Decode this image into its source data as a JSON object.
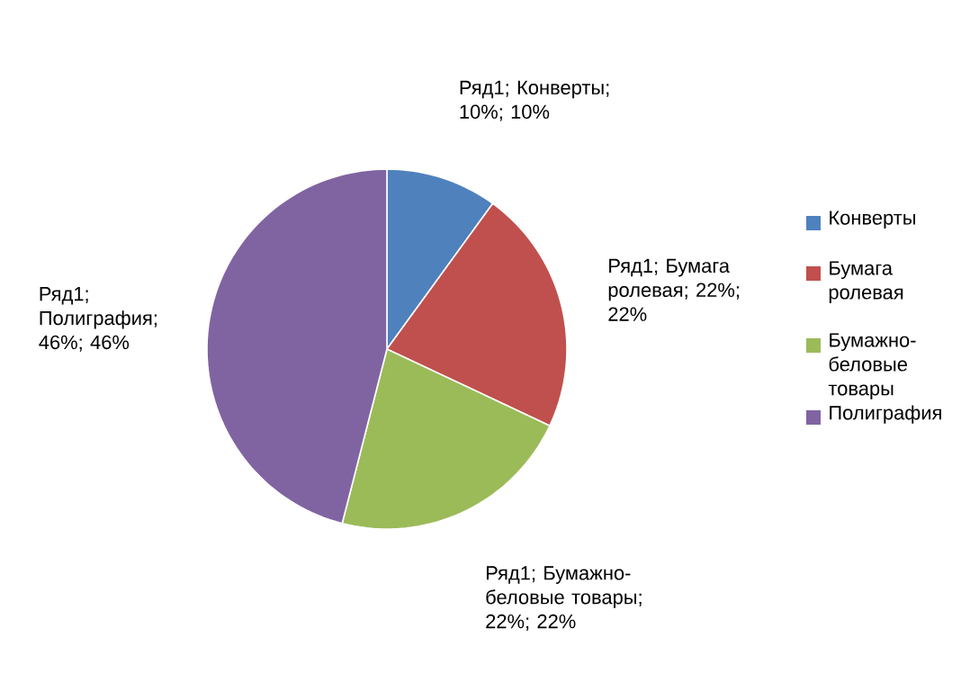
{
  "chart_data": {
    "type": "pie",
    "categories": [
      "Конверты",
      "Бумага ролевая",
      "Бумажно-беловые товары",
      "Полиграфия"
    ],
    "values": [
      10,
      22,
      22,
      46
    ],
    "colors": [
      "#4f81bd",
      "#c0504d",
      "#9bbb59",
      "#8064a2"
    ],
    "value_labels": [
      "Ряд1; Конверты; 10%; 10%",
      "Ряд1; Бумага ролевая; 22%; 22%",
      "Ряд1; Бумажно-беловые товары; 22%; 22%",
      "Ряд1; Полиграфия; 46%; 46%"
    ],
    "legend": "right"
  }
}
